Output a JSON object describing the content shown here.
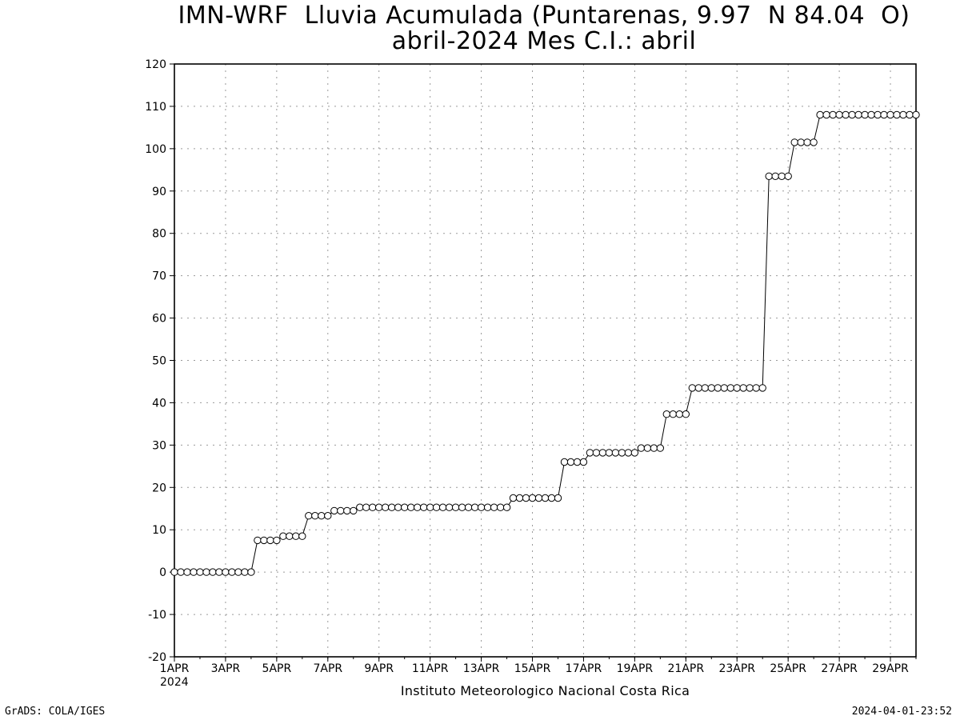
{
  "chart_data": {
    "type": "line",
    "title": "IMN-WRF  Lluvia Acumulada (Puntarenas, 9.97  N 84.04  O)",
    "subtitle": "abril-2024 Mes C.I.: abril",
    "xlabel": "",
    "ylabel": "",
    "ylim": [
      -20,
      120
    ],
    "yticks": [
      -20,
      -10,
      0,
      10,
      20,
      30,
      40,
      50,
      60,
      70,
      80,
      90,
      100,
      110,
      120
    ],
    "xlim_days": [
      1,
      30
    ],
    "xticks": [
      {
        "day": 1,
        "label": "1APR"
      },
      {
        "day": 3,
        "label": "3APR"
      },
      {
        "day": 5,
        "label": "5APR"
      },
      {
        "day": 7,
        "label": "7APR"
      },
      {
        "day": 9,
        "label": "9APR"
      },
      {
        "day": 11,
        "label": "11APR"
      },
      {
        "day": 13,
        "label": "13APR"
      },
      {
        "day": 15,
        "label": "15APR"
      },
      {
        "day": 17,
        "label": "17APR"
      },
      {
        "day": 19,
        "label": "19APR"
      },
      {
        "day": 21,
        "label": "21APR"
      },
      {
        "day": 23,
        "label": "23APR"
      },
      {
        "day": 25,
        "label": "25APR"
      },
      {
        "day": 27,
        "label": "27APR"
      },
      {
        "day": 29,
        "label": "29APR"
      }
    ],
    "year_label": "2024",
    "grid": true,
    "time_step_hours": 6,
    "values": [
      0,
      0,
      0,
      0,
      0,
      0,
      0,
      0,
      0,
      0,
      0,
      0,
      0,
      7.5,
      7.5,
      7.5,
      7.5,
      8.5,
      8.5,
      8.5,
      8.5,
      13.3,
      13.3,
      13.3,
      13.3,
      14.5,
      14.5,
      14.5,
      14.5,
      15.3,
      15.3,
      15.3,
      15.3,
      15.3,
      15.3,
      15.3,
      15.3,
      15.3,
      15.3,
      15.3,
      15.3,
      15.3,
      15.3,
      15.3,
      15.3,
      15.3,
      15.3,
      15.3,
      15.3,
      15.3,
      15.3,
      15.3,
      15.3,
      17.5,
      17.5,
      17.5,
      17.5,
      17.5,
      17.5,
      17.5,
      17.5,
      26.0,
      26.0,
      26.0,
      26.0,
      28.2,
      28.2,
      28.2,
      28.2,
      28.2,
      28.2,
      28.2,
      28.2,
      29.3,
      29.3,
      29.3,
      29.3,
      37.3,
      37.3,
      37.3,
      37.3,
      43.5,
      43.5,
      43.5,
      43.5,
      43.5,
      43.5,
      43.5,
      43.5,
      43.5,
      43.5,
      43.5,
      43.5,
      93.5,
      93.5,
      93.5,
      93.5,
      101.5,
      101.5,
      101.5,
      101.5,
      108.0,
      108.0,
      108.0,
      108.0,
      108.0,
      108.0,
      108.0,
      108.0,
      108.0,
      108.0,
      108.0,
      108.0,
      108.0,
      108.0,
      108.0,
      108.0
    ],
    "line_color": "#000000",
    "marker": "open-circle"
  },
  "footer": {
    "institution": "Instituto Meteorologico Nacional Costa Rica",
    "credit": "GrADS: COLA/IGES",
    "timestamp": "2024-04-01-23:52"
  }
}
